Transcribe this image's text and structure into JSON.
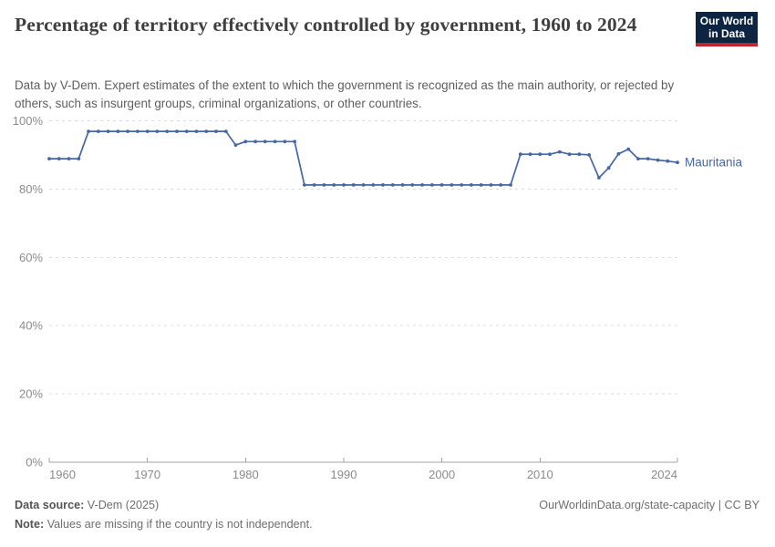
{
  "header": {
    "title": "Percentage of territory effectively controlled by government, 1960 to 2024",
    "subtitle": "Data by V-Dem. Expert estimates of the extent to which the government is recognized as the main authority, or rejected by others, such as insurgent groups, criminal organizations, or other countries.",
    "logo": {
      "line1": "Our World",
      "line2": "in Data",
      "bg_color": "#0d2442",
      "accent_color": "#be282d"
    }
  },
  "chart_data": {
    "type": "line",
    "title": "Percentage of territory effectively controlled by government, 1960 to 2024",
    "xlabel": "",
    "ylabel": "",
    "xlim": [
      1960,
      2024
    ],
    "ylim": [
      0,
      100
    ],
    "x_ticks": [
      1960,
      1970,
      1980,
      1990,
      2000,
      2010,
      2024
    ],
    "y_ticks": [
      0,
      20,
      40,
      60,
      80,
      100
    ],
    "y_tick_suffix": "%",
    "grid": true,
    "legend_position": "end-of-line",
    "colors": {
      "line": "#4666a5",
      "gridline": "#dcdcdc",
      "axis": "#a3a3a3",
      "tick_label": "#8b8b8b"
    },
    "series": [
      {
        "name": "Mauritania",
        "color": "#4666a5",
        "x": [
          1960,
          1961,
          1962,
          1963,
          1964,
          1965,
          1966,
          1967,
          1968,
          1969,
          1970,
          1971,
          1972,
          1973,
          1974,
          1975,
          1976,
          1977,
          1978,
          1979,
          1980,
          1981,
          1982,
          1983,
          1984,
          1985,
          1986,
          1987,
          1988,
          1989,
          1990,
          1991,
          1992,
          1993,
          1994,
          1995,
          1996,
          1997,
          1998,
          1999,
          2000,
          2001,
          2002,
          2003,
          2004,
          2005,
          2006,
          2007,
          2008,
          2009,
          2010,
          2011,
          2012,
          2013,
          2014,
          2015,
          2016,
          2017,
          2018,
          2019,
          2020,
          2021,
          2022,
          2023,
          2024
        ],
        "values": [
          88.9,
          88.9,
          88.9,
          88.9,
          96.9,
          96.9,
          96.9,
          96.9,
          96.9,
          96.9,
          96.9,
          96.9,
          96.9,
          96.9,
          96.9,
          96.9,
          96.9,
          96.9,
          96.9,
          92.9,
          93.9,
          93.9,
          93.9,
          93.9,
          93.9,
          93.9,
          81.2,
          81.2,
          81.2,
          81.2,
          81.2,
          81.2,
          81.2,
          81.2,
          81.2,
          81.2,
          81.2,
          81.2,
          81.2,
          81.2,
          81.2,
          81.2,
          81.2,
          81.2,
          81.2,
          81.2,
          81.2,
          81.2,
          90.2,
          90.2,
          90.2,
          90.2,
          90.9,
          90.2,
          90.2,
          90.0,
          83.3,
          86.2,
          90.3,
          91.7,
          88.9,
          88.9,
          88.5,
          88.2,
          87.8
        ]
      }
    ]
  },
  "footer": {
    "data_source_label": "Data source:",
    "data_source_value": "V-Dem (2025)",
    "note_label": "Note:",
    "note_value": "Values are missing if the country is not independent.",
    "link": "OurWorldinData.org/state-capacity | CC BY"
  }
}
